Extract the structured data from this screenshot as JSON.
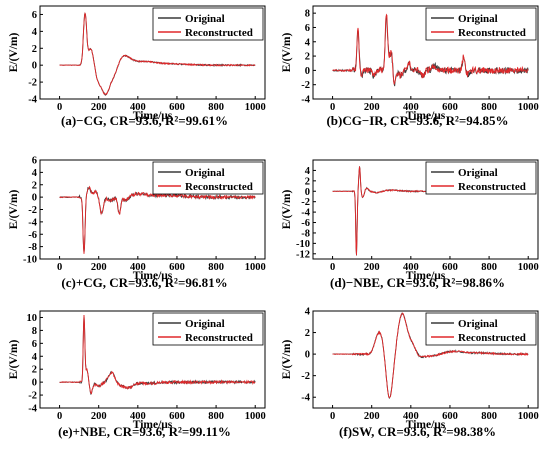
{
  "colors": {
    "original": "#3a3a3a",
    "reconstructed": "#e0292b"
  },
  "chart_data": [
    {
      "type": "line",
      "caption": "(a)−CG, CR=93.6, R²=99.61%",
      "xlabel": "Time/μs",
      "ylabel": "E/(V/m)",
      "xlim": [
        -100,
        1050
      ],
      "ylim": [
        -4,
        7
      ],
      "xticks": [
        0,
        200,
        400,
        600,
        800,
        1000
      ],
      "yticks": [
        -4,
        -2,
        0,
        2,
        4,
        6
      ],
      "legend": [
        "Original",
        "Reconstructed"
      ],
      "legend_position": "top-right",
      "events": [
        [
          130,
          6.0,
          8
        ],
        [
          160,
          2.0,
          14
        ],
        [
          195,
          -1.3,
          15
        ],
        [
          235,
          -3.4,
          22
        ],
        [
          280,
          -1.1,
          18
        ],
        [
          330,
          1.0,
          30
        ],
        [
          420,
          0.4,
          60
        ],
        [
          560,
          0.15,
          90
        ]
      ],
      "noise": 0.08,
      "y0": 0.0,
      "x_end": 1000
    },
    {
      "type": "line",
      "caption": "(b)CG−IR, CR=93.6, R²=94.85%",
      "xlabel": "Time/μs",
      "ylabel": "E/(V/m)",
      "xlim": [
        -100,
        1050
      ],
      "ylim": [
        -4,
        9
      ],
      "xticks": [
        0,
        200,
        400,
        600,
        800,
        1000
      ],
      "yticks": [
        -4,
        -2,
        0,
        2,
        4,
        6,
        8
      ],
      "legend": [
        "Original",
        "Reconstructed"
      ],
      "legend_position": "top-right",
      "events": [
        [
          130,
          5.8,
          5
        ],
        [
          150,
          -0.6,
          6
        ],
        [
          210,
          -0.8,
          8
        ],
        [
          275,
          7.5,
          6
        ],
        [
          300,
          2.5,
          12
        ],
        [
          315,
          -3.2,
          6
        ],
        [
          345,
          -0.8,
          10
        ],
        [
          390,
          1.0,
          8
        ],
        [
          460,
          -0.7,
          10
        ],
        [
          520,
          0.6,
          12
        ],
        [
          670,
          2.0,
          6
        ],
        [
          690,
          -0.6,
          8
        ]
      ],
      "noise": 0.45,
      "y0": 0.0,
      "x_end": 1000
    },
    {
      "type": "line",
      "caption": "(c)+CG, CR=93.6, R²=96.81%",
      "xlabel": "Time/μs",
      "ylabel": "E/(V/m)",
      "xlim": [
        -100,
        1050
      ],
      "ylim": [
        -10,
        6
      ],
      "xticks": [
        0,
        200,
        400,
        600,
        800,
        1000
      ],
      "yticks": [
        -10,
        -8,
        -6,
        -4,
        -2,
        0,
        2,
        4,
        6
      ],
      "legend": [
        "Original",
        "Reconstructed"
      ],
      "legend_position": "top-right",
      "events": [
        [
          125,
          -9.3,
          5
        ],
        [
          150,
          1.5,
          10
        ],
        [
          185,
          1.0,
          10
        ],
        [
          215,
          -2.6,
          9
        ],
        [
          260,
          -0.5,
          15
        ],
        [
          305,
          -2.8,
          7
        ],
        [
          340,
          -0.6,
          15
        ],
        [
          400,
          0.5,
          40
        ],
        [
          550,
          0.3,
          80
        ]
      ],
      "noise": 0.25,
      "y0": 0.0,
      "x_end": 1000
    },
    {
      "type": "line",
      "caption": "(d)−NBE, CR=93.6, R²=98.86%",
      "xlabel": "Time/μs",
      "ylabel": "E/(V/m)",
      "xlim": [
        -100,
        1050
      ],
      "ylim": [
        -13,
        6
      ],
      "xticks": [
        0,
        200,
        400,
        600,
        800,
        1000
      ],
      "yticks": [
        -12,
        -10,
        -8,
        -6,
        -4,
        -2,
        0,
        2,
        4
      ],
      "legend": [
        "Original",
        "Reconstructed"
      ],
      "legend_position": "top-right",
      "events": [
        [
          122,
          -12.5,
          3.5
        ],
        [
          138,
          4.8,
          4
        ],
        [
          155,
          -1.2,
          6
        ],
        [
          175,
          0.6,
          8
        ],
        [
          230,
          -0.3,
          20
        ],
        [
          300,
          0.2,
          40
        ]
      ],
      "noise": 0.12,
      "y0": 0.0,
      "x_end": 1000
    },
    {
      "type": "line",
      "caption": "(e)+NBE, CR=93.6, R²=99.11%",
      "xlabel": "Time/μs",
      "ylabel": "E/(V/m)",
      "xlim": [
        -100,
        1050
      ],
      "ylim": [
        -4,
        11
      ],
      "xticks": [
        0,
        200,
        400,
        600,
        800,
        1000
      ],
      "yticks": [
        -4,
        -2,
        0,
        2,
        4,
        6,
        8,
        10
      ],
      "legend": [
        "Original",
        "Reconstructed"
      ],
      "legend_position": "top-right",
      "events": [
        [
          125,
          10.0,
          4
        ],
        [
          140,
          2.0,
          8
        ],
        [
          160,
          -1.8,
          8
        ],
        [
          200,
          -0.6,
          15
        ],
        [
          265,
          1.5,
          15
        ],
        [
          310,
          -0.3,
          15
        ],
        [
          350,
          -0.8,
          25
        ],
        [
          450,
          -0.2,
          50
        ]
      ],
      "noise": 0.2,
      "y0": 0.0,
      "x_end": 1000
    },
    {
      "type": "line",
      "caption": "(f)SW, CR=93.6, R²=98.38%",
      "xlabel": "Time/μs",
      "ylabel": "E/(V/m)",
      "xlim": [
        -100,
        1050
      ],
      "ylim": [
        -5,
        4
      ],
      "xticks": [
        0,
        200,
        400,
        600,
        800,
        1000
      ],
      "yticks": [
        -4,
        -2,
        0,
        2,
        4
      ],
      "legend": [
        "Original",
        "Reconstructed"
      ],
      "legend_position": "top-right",
      "events": [
        [
          225,
          0.8,
          15
        ],
        [
          250,
          1.8,
          20
        ],
        [
          290,
          -4.3,
          18
        ],
        [
          355,
          3.6,
          22
        ],
        [
          405,
          1.0,
          25
        ],
        [
          440,
          -0.4,
          20
        ],
        [
          500,
          -0.2,
          40
        ],
        [
          620,
          0.25,
          50
        ],
        [
          760,
          0.1,
          60
        ]
      ],
      "noise": 0.08,
      "y0": 0.0,
      "x_end": 1000
    }
  ]
}
